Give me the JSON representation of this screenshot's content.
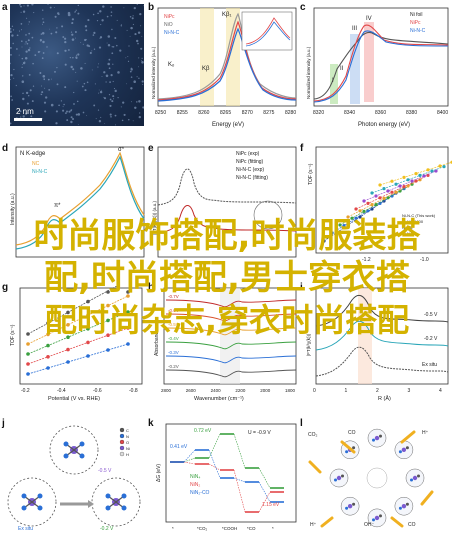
{
  "labels": {
    "a": "a",
    "b": "b",
    "c": "c",
    "d": "d",
    "e": "e",
    "f": "f",
    "g": "g",
    "h": "h",
    "i": "i",
    "j": "j",
    "k": "k",
    "l": "l"
  },
  "panel_a": {
    "scalebar": "2 nm"
  },
  "panel_b": {
    "ylabel": "Normalized intensity (a.u.)",
    "xlabel": "Energy (eV)",
    "legend": [
      "NiPc",
      "NiO",
      "Ni-N-C"
    ],
    "ticks": [
      "8250",
      "8255",
      "8260",
      "8265",
      "8270",
      "8275",
      "8280"
    ],
    "tags": [
      "Kₒ",
      "Kβ",
      "Kβ",
      "Kβ₁"
    ],
    "colors": {
      "NiPc": "#e2484a",
      "NiO": "#9a9a9a",
      "NiNC": "#2a6fd6"
    }
  },
  "panel_c": {
    "ylabel": "Normalized intensity (a.u.)",
    "xlabel": "Photon energy (eV)",
    "legend": [
      "Ni foil",
      "NiPc",
      "Ni-N-C"
    ],
    "ticks": [
      "8320",
      "8340",
      "8360",
      "8380",
      "8400"
    ],
    "tags": [
      "I",
      "II",
      "III",
      "IV"
    ]
  },
  "panel_d": {
    "title": "N K-edge",
    "legend": [
      "NC",
      "Ni-N-C"
    ],
    "tags": [
      "π*",
      "σ*"
    ],
    "ylabel": "Intensity (a.u.)"
  },
  "panel_e": {
    "legend": [
      "NiPc (exp)",
      "NiPc (fitting)",
      "Ni-N-C (exp)",
      "Ni-N-C (fitting)"
    ],
    "ylabel": "|FT(k³χ(k))| (a.u.)"
  },
  "panel_f": {
    "ylabel": "TOF (s⁻¹)",
    "ticks": [
      "-1.2",
      "-1.0"
    ],
    "legend": [
      "Ni-N-C (This work)",
      "NiPc",
      "Ni-NC-1000",
      "Ni-SA",
      "Ni-N4",
      "Ni-NPs/C",
      "Ni-N-C (This work)"
    ]
  },
  "panel_g": {
    "xlabel": "Potential (V vs. RHE)",
    "ylabel": "TOF (s⁻¹)",
    "ticks": [
      "-0.2",
      "-0.4",
      "-0.6",
      "-0.8"
    ]
  },
  "panel_h": {
    "xlabel": "Wavenumber (cm⁻¹)",
    "ylabel": "Absorbance",
    "ticks": [
      "2800",
      "2600",
      "2400",
      "2200",
      "2000",
      "1800"
    ],
    "potentials": [
      "-0.7V",
      "-0.6V",
      "-0.5V",
      "-0.4V",
      "-0.3V",
      "-0.2V"
    ]
  },
  "panel_i": {
    "xlabel": "R (Å)",
    "ylabel": "|FT(k³χ(k))|",
    "ticks": [
      "0",
      "1",
      "2",
      "3",
      "4"
    ],
    "curves": [
      "-0.5 V",
      "-0.2 V",
      "Ex situ"
    ]
  },
  "panel_j": {
    "labels": [
      "Ex situ",
      "-0.5 V",
      "-0.2 V"
    ],
    "atoms": [
      "C",
      "N",
      "O",
      "Ni",
      "H"
    ]
  },
  "panel_k": {
    "ylabel": "ΔG (eV)",
    "title": "U = -0.9 V",
    "values": [
      "0.41 eV",
      "0.72 eV",
      "1.15 eV"
    ],
    "legend": [
      "NiN₄",
      "NiN₂",
      "NiN₂-CO"
    ],
    "xcats": [
      "*",
      "*CO₂",
      "*COOH",
      "*CO",
      "*"
    ]
  },
  "panel_l": {
    "labels": [
      "CO₂",
      "H⁺",
      "CO",
      "OH⁻",
      "CO",
      "H⁺"
    ],
    "atoms": [
      "C",
      "O",
      "H",
      "N",
      "Ni"
    ]
  },
  "overlay": {
    "line1": "时尚服饰搭配,时尚服装搭",
    "line2": "配,时尚搭配,男士穿衣搭",
    "line3": "配时尚杂志,穿衣时尚搭配"
  }
}
